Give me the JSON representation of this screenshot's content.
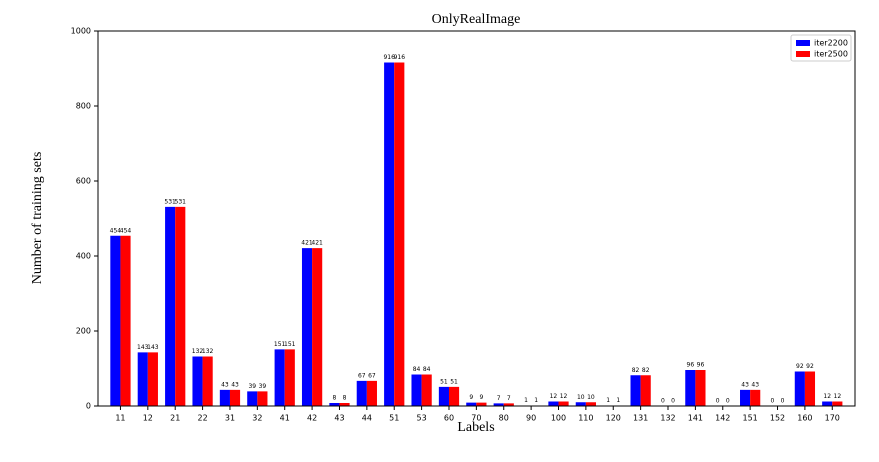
{
  "chart_data": {
    "type": "bar",
    "title": "OnlyRealImage",
    "x_label": "Labels",
    "y_label": "Number of training sets",
    "categories": [
      "11",
      "12",
      "21",
      "22",
      "31",
      "32",
      "41",
      "42",
      "43",
      "44",
      "51",
      "53",
      "60",
      "70",
      "80",
      "90",
      "100",
      "110",
      "120",
      "131",
      "132",
      "141",
      "142",
      "151",
      "152",
      "160",
      "170"
    ],
    "series": [
      {
        "name": "iter2200",
        "color": "#0000ff",
        "values": [
          454,
          143,
          531,
          132,
          43,
          39,
          151,
          421,
          8,
          67,
          916,
          84,
          51,
          9,
          7,
          1,
          12,
          10,
          1,
          82,
          0,
          96,
          0,
          43,
          0,
          92,
          12
        ]
      },
      {
        "name": "iter2500",
        "color": "#ff0000",
        "values": [
          454,
          143,
          531,
          132,
          43,
          39,
          151,
          421,
          8,
          67,
          916,
          84,
          51,
          9,
          7,
          1,
          12,
          10,
          1,
          82,
          0,
          96,
          0,
          43,
          0,
          92,
          12
        ]
      }
    ],
    "ylim": [
      0,
      1000
    ],
    "yticks": [
      0,
      200,
      400,
      600,
      800,
      1000
    ],
    "legend": "upper right"
  }
}
